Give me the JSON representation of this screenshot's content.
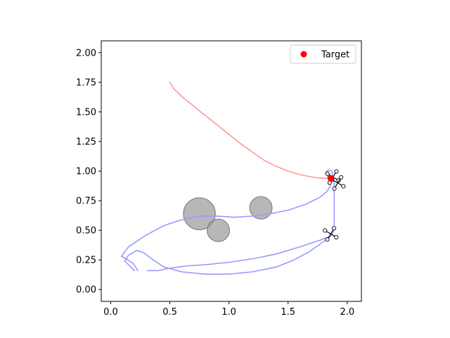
{
  "chart_data": {
    "type": "scatter",
    "title": "",
    "xlabel": "",
    "ylabel": "",
    "xlim": [
      -0.08,
      2.12
    ],
    "ylim": [
      -0.1,
      2.1
    ],
    "x_ticks": [
      0.0,
      0.5,
      1.0,
      1.5,
      2.0
    ],
    "x_tick_labels": [
      "0.0",
      "0.5",
      "1.0",
      "1.5",
      "2.0"
    ],
    "y_ticks": [
      0.0,
      0.25,
      0.5,
      0.75,
      1.0,
      1.25,
      1.5,
      1.75,
      2.0
    ],
    "y_tick_labels": [
      "0.00",
      "0.25",
      "0.50",
      "0.75",
      "1.00",
      "1.25",
      "1.50",
      "1.75",
      "2.00"
    ],
    "grid": false,
    "legend": {
      "position": "top-right",
      "entries": [
        "Target"
      ]
    },
    "target": {
      "label": "Target",
      "x": 1.86,
      "y": 0.94,
      "color": "#ff0000"
    },
    "obstacles": [
      {
        "x": 0.75,
        "y": 0.64,
        "r": 0.135
      },
      {
        "x": 0.91,
        "y": 0.5,
        "r": 0.095
      },
      {
        "x": 1.27,
        "y": 0.69,
        "r": 0.095
      }
    ],
    "obstacle_color": "#999999",
    "series": [
      {
        "color": "#ff9999",
        "points": [
          [
            0.5,
            1.75
          ],
          [
            0.53,
            1.7
          ],
          [
            0.6,
            1.63
          ],
          [
            0.7,
            1.55
          ],
          [
            0.8,
            1.47
          ],
          [
            0.9,
            1.39
          ],
          [
            1.0,
            1.31
          ],
          [
            1.1,
            1.23
          ],
          [
            1.2,
            1.16
          ],
          [
            1.3,
            1.09
          ],
          [
            1.4,
            1.04
          ],
          [
            1.5,
            1.0
          ],
          [
            1.6,
            0.97
          ],
          [
            1.7,
            0.95
          ],
          [
            1.78,
            0.94
          ],
          [
            1.86,
            0.94
          ]
        ]
      },
      {
        "color": "#9999ff",
        "points": [
          [
            0.2,
            0.16
          ],
          [
            0.16,
            0.2
          ],
          [
            0.12,
            0.24
          ],
          [
            0.15,
            0.29
          ],
          [
            0.22,
            0.33
          ],
          [
            0.28,
            0.31
          ],
          [
            0.36,
            0.25
          ],
          [
            0.45,
            0.19
          ],
          [
            0.6,
            0.15
          ],
          [
            0.8,
            0.13
          ],
          [
            1.0,
            0.13
          ],
          [
            1.2,
            0.15
          ],
          [
            1.4,
            0.19
          ],
          [
            1.55,
            0.25
          ],
          [
            1.68,
            0.32
          ],
          [
            1.78,
            0.39
          ],
          [
            1.86,
            0.45
          ],
          [
            1.89,
            0.5
          ],
          [
            1.89,
            0.7
          ],
          [
            1.89,
            0.9
          ],
          [
            1.87,
            1.0
          ],
          [
            1.84,
            1.01
          ],
          [
            1.82,
            0.99
          ],
          [
            1.84,
            0.95
          ]
        ]
      },
      {
        "color": "#9999ff",
        "points": [
          [
            0.23,
            0.16
          ],
          [
            0.19,
            0.22
          ],
          [
            0.13,
            0.26
          ],
          [
            0.09,
            0.28
          ],
          [
            0.15,
            0.36
          ],
          [
            0.3,
            0.46
          ],
          [
            0.45,
            0.54
          ],
          [
            0.6,
            0.59
          ],
          [
            0.75,
            0.62
          ],
          [
            0.9,
            0.62
          ],
          [
            1.05,
            0.61
          ],
          [
            1.2,
            0.62
          ],
          [
            1.35,
            0.64
          ],
          [
            1.5,
            0.67
          ],
          [
            1.65,
            0.72
          ],
          [
            1.77,
            0.78
          ],
          [
            1.83,
            0.83
          ],
          [
            1.86,
            0.88
          ]
        ]
      },
      {
        "color": "#9999ff",
        "points": [
          [
            0.31,
            0.16
          ],
          [
            0.4,
            0.16
          ],
          [
            0.5,
            0.18
          ],
          [
            0.65,
            0.2
          ],
          [
            0.8,
            0.21
          ],
          [
            1.0,
            0.23
          ],
          [
            1.2,
            0.26
          ],
          [
            1.4,
            0.3
          ],
          [
            1.6,
            0.36
          ],
          [
            1.75,
            0.41
          ],
          [
            1.86,
            0.45
          ]
        ]
      }
    ],
    "drones": [
      {
        "x": 1.88,
        "y": 0.95
      },
      {
        "x": 1.92,
        "y": 0.9
      },
      {
        "x": 1.86,
        "y": 0.47
      }
    ]
  }
}
